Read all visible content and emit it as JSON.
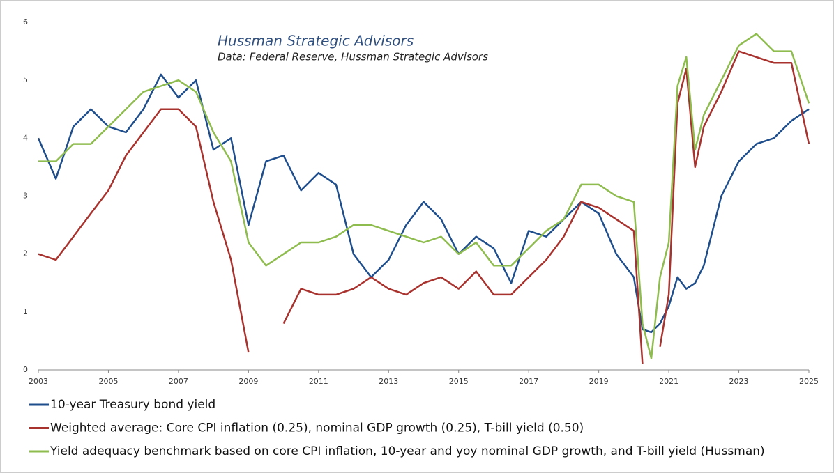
{
  "chart_data": {
    "type": "line",
    "title": "Hussman Strategic Advisors",
    "subtitle": "Data: Federal Reserve, Hussman Strategic Advisors",
    "x": [
      2003,
      2003.5,
      2004,
      2004.5,
      2005,
      2005.5,
      2006,
      2006.5,
      2007,
      2007.5,
      2008,
      2008.5,
      2009,
      2009.5,
      2010,
      2010.5,
      2011,
      2011.5,
      2012,
      2012.5,
      2013,
      2013.5,
      2014,
      2014.5,
      2015,
      2015.5,
      2016,
      2016.5,
      2017,
      2017.5,
      2018,
      2018.5,
      2019,
      2019.5,
      2020,
      2020.25,
      2020.5,
      2020.75,
      2021,
      2021.25,
      2021.5,
      2021.75,
      2022,
      2022.5,
      2023,
      2023.5,
      2024,
      2024.5,
      2025
    ],
    "series": [
      {
        "name": "10-year Treasury bond yield",
        "color": "#1f4e8c",
        "values": [
          4.0,
          3.3,
          4.2,
          4.5,
          4.2,
          4.1,
          4.5,
          5.1,
          4.7,
          5.0,
          3.8,
          4.0,
          2.5,
          3.6,
          3.7,
          3.1,
          3.4,
          3.2,
          2.0,
          1.6,
          1.9,
          2.5,
          2.9,
          2.6,
          2.0,
          2.3,
          2.1,
          1.5,
          2.4,
          2.3,
          2.6,
          2.9,
          2.7,
          2.0,
          1.6,
          0.7,
          0.65,
          0.8,
          1.1,
          1.6,
          1.4,
          1.5,
          1.8,
          3.0,
          3.6,
          3.9,
          4.0,
          4.3,
          4.5
        ]
      },
      {
        "name": "Weighted average: Core CPI inflation (0.25), nominal GDP growth (0.25), T-bill yield (0.50)",
        "color": "#a8322d",
        "values": [
          2.0,
          1.9,
          2.3,
          2.7,
          3.1,
          3.7,
          4.1,
          4.5,
          4.5,
          4.2,
          2.9,
          1.9,
          0.3,
          null,
          0.8,
          1.4,
          1.3,
          1.3,
          1.4,
          1.6,
          1.4,
          1.3,
          1.5,
          1.6,
          1.4,
          1.7,
          1.3,
          1.3,
          1.6,
          1.9,
          2.3,
          2.9,
          2.8,
          2.6,
          2.4,
          0.1,
          null,
          0.4,
          1.3,
          4.6,
          5.2,
          3.5,
          4.2,
          4.8,
          5.5,
          5.4,
          5.3,
          5.3,
          3.9
        ]
      },
      {
        "name": "Yield adequacy benchmark based on core CPI inflation, 10-year and yoy nominal GDP growth, and T-bill yield (Hussman)",
        "color": "#8fbc4f",
        "values": [
          3.6,
          3.6,
          3.9,
          3.9,
          4.2,
          4.5,
          4.8,
          4.9,
          5.0,
          4.8,
          4.1,
          3.6,
          2.2,
          1.8,
          2.0,
          2.2,
          2.2,
          2.3,
          2.5,
          2.5,
          2.4,
          2.3,
          2.2,
          2.3,
          2.0,
          2.2,
          1.8,
          1.8,
          2.1,
          2.4,
          2.6,
          3.2,
          3.2,
          3.0,
          2.9,
          0.8,
          0.2,
          1.6,
          2.2,
          4.9,
          5.4,
          3.8,
          4.4,
          5.0,
          5.6,
          5.8,
          5.5,
          5.5,
          4.6
        ]
      }
    ],
    "xlim": [
      2003,
      2025
    ],
    "xticks": [
      2003,
      2005,
      2007,
      2009,
      2011,
      2013,
      2015,
      2017,
      2019,
      2021,
      2023,
      2025
    ],
    "ylim": [
      0,
      6
    ],
    "yticks": [
      0,
      1,
      2,
      3,
      4,
      5,
      6
    ],
    "grid": false,
    "legend": "bottom"
  }
}
